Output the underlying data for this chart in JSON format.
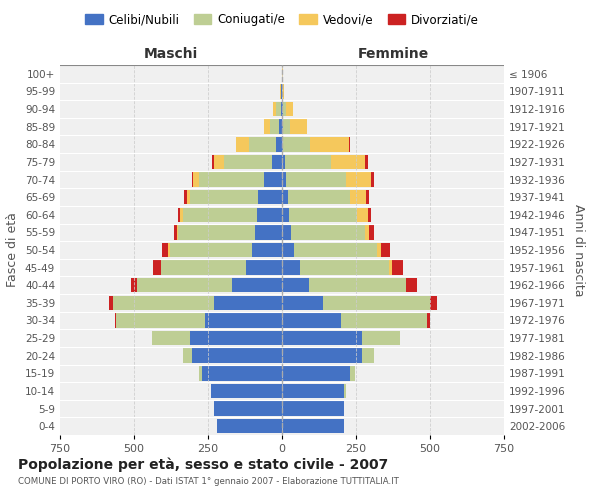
{
  "age_groups": [
    "0-4",
    "5-9",
    "10-14",
    "15-19",
    "20-24",
    "25-29",
    "30-34",
    "35-39",
    "40-44",
    "45-49",
    "50-54",
    "55-59",
    "60-64",
    "65-69",
    "70-74",
    "75-79",
    "80-84",
    "85-89",
    "90-94",
    "95-99",
    "100+"
  ],
  "birth_years": [
    "2002-2006",
    "1997-2001",
    "1992-1996",
    "1987-1991",
    "1982-1986",
    "1977-1981",
    "1972-1976",
    "1967-1971",
    "1962-1966",
    "1957-1961",
    "1952-1956",
    "1947-1951",
    "1942-1946",
    "1937-1941",
    "1932-1936",
    "1927-1931",
    "1922-1926",
    "1917-1921",
    "1912-1916",
    "1907-1911",
    "≤ 1906"
  ],
  "colors": {
    "celibe": "#4472C4",
    "coniugato": "#BECE94",
    "vedovo": "#F5C85C",
    "divorziato": "#CC2222"
  },
  "maschi": {
    "celibe": [
      220,
      230,
      240,
      270,
      305,
      310,
      260,
      230,
      170,
      120,
      100,
      90,
      85,
      80,
      60,
      35,
      20,
      10,
      5,
      2,
      0
    ],
    "coniugato": [
      0,
      0,
      0,
      10,
      30,
      130,
      300,
      340,
      320,
      290,
      280,
      260,
      250,
      230,
      220,
      160,
      90,
      30,
      15,
      3,
      0
    ],
    "vedovo": [
      0,
      0,
      0,
      0,
      0,
      0,
      0,
      0,
      0,
      0,
      5,
      5,
      8,
      10,
      20,
      35,
      45,
      20,
      10,
      2,
      0
    ],
    "divorziato": [
      0,
      0,
      0,
      0,
      0,
      0,
      5,
      15,
      20,
      25,
      20,
      10,
      10,
      10,
      5,
      5,
      0,
      0,
      0,
      0,
      0
    ]
  },
  "femmine": {
    "nubile": [
      210,
      210,
      210,
      230,
      270,
      270,
      200,
      140,
      90,
      60,
      40,
      30,
      25,
      20,
      15,
      10,
      5,
      3,
      2,
      0,
      0
    ],
    "coniugata": [
      0,
      0,
      5,
      15,
      40,
      130,
      290,
      360,
      330,
      300,
      280,
      250,
      230,
      210,
      200,
      155,
      90,
      25,
      10,
      2,
      0
    ],
    "vedova": [
      0,
      0,
      0,
      0,
      0,
      0,
      0,
      0,
      0,
      10,
      15,
      15,
      35,
      55,
      85,
      115,
      130,
      55,
      25,
      5,
      2
    ],
    "divorziata": [
      0,
      0,
      0,
      0,
      0,
      0,
      10,
      25,
      35,
      40,
      30,
      15,
      10,
      10,
      10,
      10,
      5,
      0,
      0,
      0,
      0
    ]
  },
  "title": "Popolazione per età, sesso e stato civile - 2007",
  "subtitle": "COMUNE DI PORTO VIRO (RO) - Dati ISTAT 1° gennaio 2007 - Elaborazione TUTTITALIA.IT",
  "xlabel_left": "Maschi",
  "xlabel_right": "Femmine",
  "ylabel_left": "Fasce di età",
  "ylabel_right": "Anni di nascita",
  "xlim": 750,
  "legend_labels": [
    "Celibi/Nubili",
    "Coniugati/e",
    "Vedovi/e",
    "Divorziati/e"
  ],
  "bg_color": "#ffffff",
  "plot_bg": "#f0f0f0",
  "grid_color": "#cccccc"
}
